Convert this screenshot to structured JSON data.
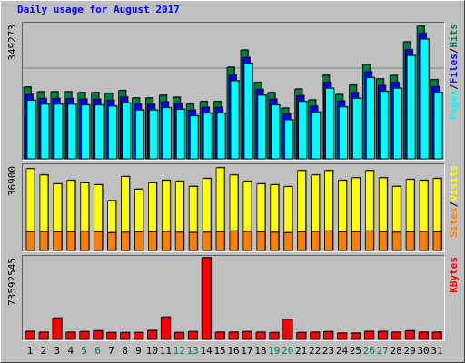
{
  "chart_data": {
    "type": "webalizer-daily",
    "title": "Daily usage for August 2017",
    "categories": [
      "1",
      "2",
      "3",
      "4",
      "5",
      "6",
      "7",
      "8",
      "9",
      "10",
      "11",
      "12",
      "13",
      "14",
      "15",
      "16",
      "17",
      "18",
      "19",
      "20",
      "21",
      "22",
      "23",
      "24",
      "25",
      "26",
      "27",
      "28",
      "29",
      "30",
      "31"
    ],
    "category_colors": [
      "#000000",
      "#000000",
      "#000000",
      "#000000",
      "#008060",
      "#008060",
      "#000000",
      "#000000",
      "#000000",
      "#000000",
      "#000000",
      "#008060",
      "#008060",
      "#000000",
      "#000000",
      "#000000",
      "#000000",
      "#000000",
      "#008060",
      "#008060",
      "#000000",
      "#000000",
      "#000000",
      "#000000",
      "#000000",
      "#008060",
      "#008060",
      "#000000",
      "#000000",
      "#000000",
      "#000000"
    ],
    "legend_separator": "/",
    "panels": [
      {
        "ylim": [
          0,
          349273
        ],
        "yticks": [
          349273
        ],
        "grid": true,
        "series": [
          {
            "name": "Hits",
            "color": "#008040",
            "values": [
              184000,
              172000,
              172000,
              172000,
              170000,
              170000,
              168000,
              175000,
              156000,
              156000,
              163000,
              158000,
              140000,
              147000,
              147000,
              235000,
              279000,
              196000,
              170000,
              130000,
              179000,
              151000,
              214000,
              165000,
              189000,
              242000,
              205000,
              214000,
              300000,
              340000,
              203000
            ]
          },
          {
            "name": "Files",
            "color": "#0000ff",
            "values": [
              165000,
              155000,
              155000,
              155000,
              153000,
              153000,
              150000,
              158000,
              140000,
              140000,
              146000,
              142000,
              125000,
              132000,
              132000,
              215000,
              260000,
              178000,
              153000,
              115000,
              162000,
              135000,
              196000,
              148000,
              170000,
              223000,
              188000,
              196000,
              280000,
              322000,
              185000
            ]
          },
          {
            "name": "Pages",
            "color": "#00ffff",
            "values": [
              150000,
              140000,
              140000,
              140000,
              138000,
              138000,
              135000,
              143000,
              125000,
              125000,
              131000,
              127000,
              110000,
              117000,
              117000,
              200000,
              245000,
              163000,
              138000,
              100000,
              147000,
              120000,
              181000,
              133000,
              155000,
              208000,
              173000,
              181000,
              265000,
              307000,
              170000
            ]
          }
        ]
      },
      {
        "ylim": [
          0,
          36900
        ],
        "yticks": [
          36900
        ],
        "grid": false,
        "series": [
          {
            "name": "Visits",
            "color": "#ffff00",
            "values": [
              35000,
              32300,
              28500,
              30000,
              28900,
              28100,
              21300,
              31600,
              26200,
              28900,
              30000,
              29600,
              27400,
              30800,
              35400,
              32300,
              29600,
              28500,
              28100,
              27300,
              34200,
              32300,
              34200,
              30000,
              31100,
              34200,
              31100,
              27400,
              30400,
              30000,
              30800
            ]
          },
          {
            "name": "Sites",
            "color": "#ff8000",
            "values": [
              8000,
              8100,
              7900,
              8000,
              8200,
              8000,
              7600,
              7800,
              7900,
              8000,
              8100,
              7800,
              7700,
              7800,
              8000,
              8300,
              8100,
              7900,
              7800,
              7600,
              8000,
              8100,
              8300,
              7900,
              8000,
              8300,
              8000,
              7800,
              8000,
              8100,
              7900
            ]
          }
        ]
      },
      {
        "ylim": [
          0,
          73592545
        ],
        "yticks": [
          73592545
        ],
        "grid": false,
        "series": [
          {
            "name": "KBytes",
            "color": "#ff0000",
            "values": [
              7000000,
              6300000,
              18800000,
              6300000,
              6800000,
              7500000,
              6000000,
              6000000,
              6000000,
              7800000,
              19600000,
              6000000,
              6800000,
              72000000,
              6300000,
              6300000,
              6800000,
              6300000,
              6000000,
              17600000,
              6000000,
              6300000,
              6800000,
              5500000,
              5500000,
              7000000,
              7000000,
              6300000,
              7500000,
              6300000,
              6300000
            ]
          }
        ]
      }
    ]
  }
}
